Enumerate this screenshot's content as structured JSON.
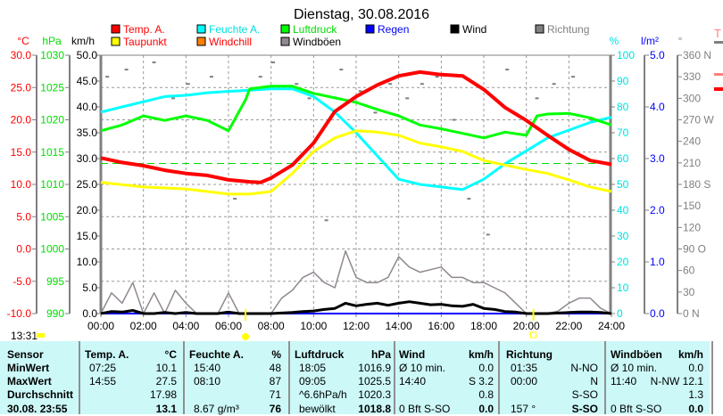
{
  "title": "Dienstag, 30.08.2016",
  "legend": [
    {
      "label": "Temp. A.",
      "color": "#ff0000",
      "text_color": "#ff0000"
    },
    {
      "label": "Feuchte A.",
      "color": "#00ffff",
      "text_color": "#00e0e0"
    },
    {
      "label": "Luftdruck",
      "color": "#00ff00",
      "text_color": "#00dd00"
    },
    {
      "label": "Regen",
      "color": "#0000ff",
      "text_color": "#0000ff"
    },
    {
      "label": "Wind",
      "color": "#000000",
      "text_color": "#000000"
    },
    {
      "label": "Richtung",
      "color": "#808080",
      "text_color": "#808080"
    },
    {
      "label": "Taupunkt",
      "color": "#ffff00",
      "text_color": "#ff0000"
    },
    {
      "label": "Windchill",
      "color": "#ff8000",
      "text_color": "#ff0000"
    },
    {
      "label": "Windböen",
      "color": "#908890",
      "text_color": "#000000"
    }
  ],
  "right_edge_fragment": "T",
  "axes": {
    "temp": {
      "unit": "°C",
      "ticks": [
        "30.0",
        "25.0",
        "20.0",
        "15.0",
        "10.0",
        "5.0",
        "0.0",
        "-5.0",
        "-10.0"
      ],
      "range": [
        -10,
        30
      ]
    },
    "pressure": {
      "unit": "hPa",
      "ticks": [
        "1030",
        "1025",
        "1020",
        "1015",
        "1010",
        "1005",
        "1000",
        "995",
        "990"
      ],
      "range": [
        990,
        1030
      ]
    },
    "wind": {
      "unit": "km/h",
      "ticks": [
        "50.0",
        "45.0",
        "40.0",
        "35.0",
        "30.0",
        "25.0",
        "20.0",
        "15.0",
        "10.0",
        "5.0",
        "0.0"
      ],
      "range": [
        0,
        50
      ]
    },
    "humidity": {
      "unit": "%",
      "ticks": [
        "100",
        "90",
        "80",
        "70",
        "60",
        "50",
        "40",
        "30",
        "20",
        "10",
        "0"
      ],
      "range": [
        0,
        100
      ]
    },
    "rain": {
      "unit": "l/m²",
      "ticks": [
        "5.0",
        "4.0",
        "3.0",
        "2.0",
        "1.0",
        "0.0"
      ],
      "range": [
        0,
        5
      ]
    },
    "direction": {
      "unit": "°",
      "ticks": [
        "360 N",
        "330",
        "300",
        "270 W",
        "240",
        "210",
        "180 S",
        "150",
        "120",
        "90  O",
        "60",
        "30",
        "0    N"
      ],
      "range": [
        0,
        360
      ]
    },
    "time": {
      "ticks": [
        "00:00",
        "02:00",
        "04:00",
        "06:00",
        "08:00",
        "10:00",
        "12:00",
        "14:00",
        "16:00",
        "18:00",
        "20:00",
        "22:00",
        "24:00"
      ],
      "range": [
        0,
        24
      ]
    }
  },
  "current_time": "13:31",
  "chart_data": {
    "type": "line",
    "title": "Dienstag, 30.08.2016",
    "xlabel": "",
    "grid": true,
    "reference_line": {
      "axis": "pressure",
      "value": 1013.25,
      "color": "#00dd00",
      "style": "dashed"
    },
    "sun_markers": [
      {
        "time": 6.8,
        "type": "sunrise"
      },
      {
        "time": 20.33,
        "type": "sunset"
      }
    ],
    "series": [
      {
        "name": "Temp. A.",
        "axis": "temp",
        "color": "#ff0000",
        "x": [
          0,
          1,
          2,
          3,
          4,
          5,
          6,
          7,
          7.5,
          8,
          9,
          10,
          11,
          12,
          13,
          14,
          15,
          16,
          17,
          18,
          19,
          20,
          21,
          22,
          23,
          24
        ],
        "y": [
          14.1,
          13.4,
          12.9,
          12.2,
          11.7,
          11.4,
          10.7,
          10.4,
          10.3,
          11.0,
          13.0,
          16.4,
          21.3,
          23.6,
          25.4,
          26.8,
          27.4,
          27.0,
          26.8,
          24.7,
          21.9,
          19.9,
          17.6,
          15.4,
          13.7,
          13.1
        ]
      },
      {
        "name": "Taupunkt",
        "axis": "temp",
        "color": "#ffff00",
        "x": [
          0,
          2,
          4,
          6,
          7,
          8,
          9,
          10,
          11,
          12,
          13,
          14,
          15,
          16,
          17,
          18,
          19,
          20,
          21,
          22,
          23,
          24
        ],
        "y": [
          10.3,
          9.6,
          9.3,
          8.5,
          8.5,
          8.9,
          11.7,
          15.1,
          17.2,
          18.3,
          18.1,
          17.6,
          16.4,
          15.8,
          15.1,
          13.7,
          13.0,
          12.3,
          11.7,
          10.7,
          9.6,
          8.9
        ]
      },
      {
        "name": "Feuchte A.",
        "axis": "humidity",
        "color": "#00ffff",
        "x": [
          0,
          1,
          2,
          3,
          4,
          5,
          6,
          7,
          8,
          9,
          10,
          11,
          12,
          13,
          14,
          15,
          16,
          17,
          18,
          19,
          20,
          21,
          22,
          23,
          24
        ],
        "y": [
          78,
          80,
          82,
          84,
          84.5,
          85.5,
          86,
          86.5,
          87,
          87,
          84,
          78,
          70,
          61,
          52,
          50,
          49,
          48,
          52,
          58,
          63,
          68,
          71,
          74,
          76
        ]
      },
      {
        "name": "Luftdruck",
        "axis": "pressure",
        "color": "#00ff00",
        "x": [
          0,
          1,
          2,
          3,
          4,
          5,
          6,
          6.8,
          7,
          8,
          9,
          10,
          11,
          12,
          13,
          14,
          15,
          16,
          17,
          18,
          19,
          20,
          20.5,
          21,
          22,
          23,
          24
        ],
        "y": [
          1018.3,
          1019.2,
          1020.6,
          1019.9,
          1020.6,
          1019.9,
          1018.3,
          1023.1,
          1024.8,
          1025.2,
          1025.2,
          1024.1,
          1023.4,
          1022.7,
          1021.6,
          1020.6,
          1019.2,
          1018.6,
          1017.9,
          1017.2,
          1018.1,
          1017.6,
          1020.6,
          1020.9,
          1021.0,
          1020.3,
          1019.2
        ]
      },
      {
        "name": "Windböen",
        "axis": "wind",
        "color": "#908890",
        "x": [
          0,
          0.5,
          1,
          1.5,
          2,
          2.5,
          3,
          3.5,
          4,
          4.5,
          5,
          5.5,
          6,
          6.5,
          7,
          7.5,
          8,
          8.5,
          9,
          9.5,
          10,
          10.5,
          11,
          11.5,
          12,
          12.5,
          13,
          13.5,
          14,
          14.5,
          15,
          15.5,
          16,
          16.5,
          17,
          17.5,
          18,
          18.5,
          19,
          19.5,
          20,
          20.5,
          21,
          21.5,
          22,
          22.5,
          23,
          23.5,
          24
        ],
        "y": [
          0,
          4,
          2,
          6,
          0,
          4,
          0,
          4.5,
          2,
          0,
          0,
          0,
          4,
          0,
          0,
          0,
          0,
          3,
          4.5,
          7,
          8,
          6,
          5,
          12.1,
          7,
          6,
          6,
          7,
          11,
          9,
          8,
          8.5,
          9,
          7,
          7,
          6,
          6,
          5,
          4,
          2,
          0,
          0,
          0,
          0.5,
          2,
          3,
          3,
          1,
          0
        ]
      },
      {
        "name": "Wind",
        "axis": "wind",
        "color": "#000000",
        "x": [
          0,
          0.5,
          1,
          1.5,
          2,
          2.5,
          3,
          3.5,
          4,
          4.5,
          5,
          5.5,
          6,
          6.5,
          7,
          7.5,
          8,
          8.5,
          9,
          9.5,
          10,
          10.5,
          11,
          11.5,
          12,
          12.5,
          13,
          13.5,
          14,
          14.5,
          15,
          15.5,
          16,
          16.5,
          17,
          17.5,
          18,
          18.5,
          19,
          19.5,
          20,
          20.5,
          21,
          21.5,
          22,
          22.5,
          23,
          23.5,
          24
        ],
        "y": [
          0,
          0.4,
          0.3,
          0.6,
          0,
          0,
          0.2,
          0,
          0.2,
          0,
          0,
          0,
          0.3,
          0,
          0,
          0,
          0,
          0.1,
          0.2,
          0.4,
          0.5,
          0.8,
          1.0,
          2.0,
          1.5,
          1.8,
          2.0,
          1.6,
          2.0,
          2.3,
          2.0,
          1.7,
          1.8,
          1.5,
          1.4,
          1.8,
          1.0,
          0.8,
          0.4,
          0.3,
          0,
          0,
          0,
          0.1,
          0.2,
          0.3,
          0.3,
          0.2,
          0
        ]
      },
      {
        "name": "Regen",
        "axis": "rain",
        "color": "#0000ff",
        "x": [
          0,
          24
        ],
        "y": [
          0,
          0
        ]
      },
      {
        "name": "Richtung",
        "axis": "direction",
        "color": "#808080",
        "type": "scatter",
        "x": [
          0.3,
          1.2,
          2.5,
          3.4,
          4.1,
          5.2,
          6.3,
          7.5,
          8.1,
          9.2,
          9.8,
          10.6,
          11.3,
          12.2,
          12.9,
          13.6,
          14.4,
          15.1,
          15.8,
          16.6,
          17.3,
          18.2,
          19.1,
          20.5,
          21.3,
          22.2,
          23.1
        ],
        "y": [
          330,
          340,
          350,
          300,
          320,
          330,
          160,
          330,
          350,
          320,
          300,
          130,
          340,
          310,
          280,
          320,
          300,
          320,
          330,
          270,
          160,
          110,
          340,
          300,
          320,
          330,
          270
        ]
      }
    ]
  },
  "table": {
    "headers": [
      [
        "Sensor"
      ],
      [
        "Temp. A.",
        "°C"
      ],
      [
        "Feuchte A.",
        "%"
      ],
      [
        "Luftdruck",
        "hPa"
      ],
      [
        "Wind",
        "km/h"
      ],
      [
        "Richtung",
        ""
      ],
      [
        "Windböen",
        "km/h"
      ]
    ],
    "rows": [
      {
        "label": "MinWert",
        "cells": [
          [
            "07:25",
            "10.1"
          ],
          [
            "15:40",
            "48"
          ],
          [
            "18:05",
            "1016.9"
          ],
          [
            "Ø 10 min.",
            "0.0"
          ],
          [
            "01:35",
            "N-NO"
          ],
          [
            "Ø 10 min.",
            "0.0"
          ]
        ]
      },
      {
        "label": "MaxWert",
        "cells": [
          [
            "14:55",
            "27.5"
          ],
          [
            "08:10",
            "87"
          ],
          [
            "09:05",
            "1025.5"
          ],
          [
            "14:40",
            "S 3.2"
          ],
          [
            "00:00",
            "N"
          ],
          [
            "11:40",
            "N-NW 12.1"
          ]
        ]
      },
      {
        "label": "Durchschnitt",
        "cells": [
          [
            "",
            "17.98"
          ],
          [
            "",
            "71"
          ],
          [
            "^6.6hPa/h",
            "1020.3"
          ],
          [
            "",
            "0.8"
          ],
          [
            "",
            "S-SO"
          ],
          [
            "",
            "1.3"
          ]
        ]
      },
      {
        "label": "30.08. 23:55",
        "cells": [
          [
            "",
            "13.1"
          ],
          [
            "8.67 g/m³",
            "76"
          ],
          [
            "bewölkt",
            "1018.8"
          ],
          [
            "0 Bft S-SO",
            "0.0"
          ],
          [
            "157 °",
            "S-SO"
          ],
          [
            "0 Bft S-SO",
            "0.0"
          ]
        ]
      }
    ]
  }
}
